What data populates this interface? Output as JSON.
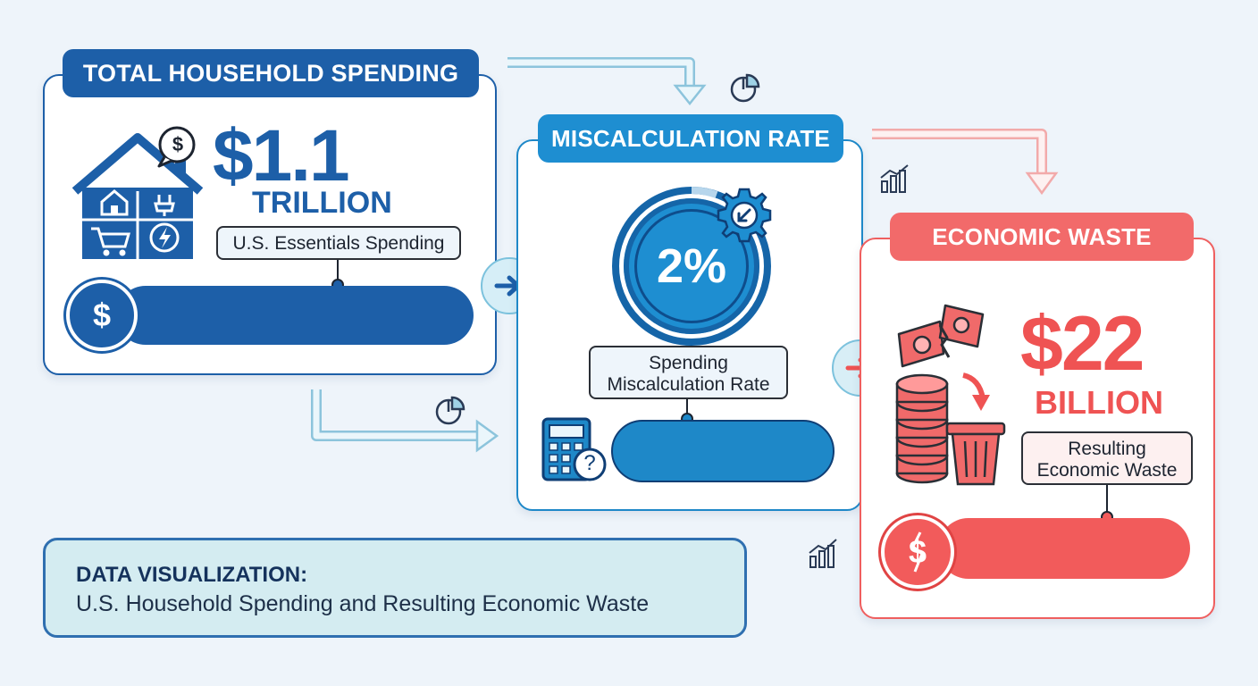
{
  "steps": [
    {
      "title": "TOTAL HOUSEHOLD SPENDING",
      "value": "$1.1",
      "unit": "TRILLION",
      "label": "U.S. Essentials Spending",
      "coin_symbol": "$",
      "color": "#1d5fa8"
    },
    {
      "title": "MISCALCULATION RATE",
      "value": "2%",
      "label_line1": "Spending",
      "label_line2": "Miscalculation Rate",
      "color": "#1e8ed1"
    },
    {
      "title": "ECONOMIC WASTE",
      "value": "$22",
      "unit": "BILLION",
      "label_line1": "Resulting",
      "label_line2": "Economic Waste",
      "coin_symbol": "$",
      "color": "#f25b5b"
    }
  ],
  "house_icon_symbol": "$",
  "calculator_symbol": "?",
  "footer": {
    "title": "DATA VISUALIZATION:",
    "subtitle": "U.S. Household Spending and Resulting Economic Waste"
  }
}
